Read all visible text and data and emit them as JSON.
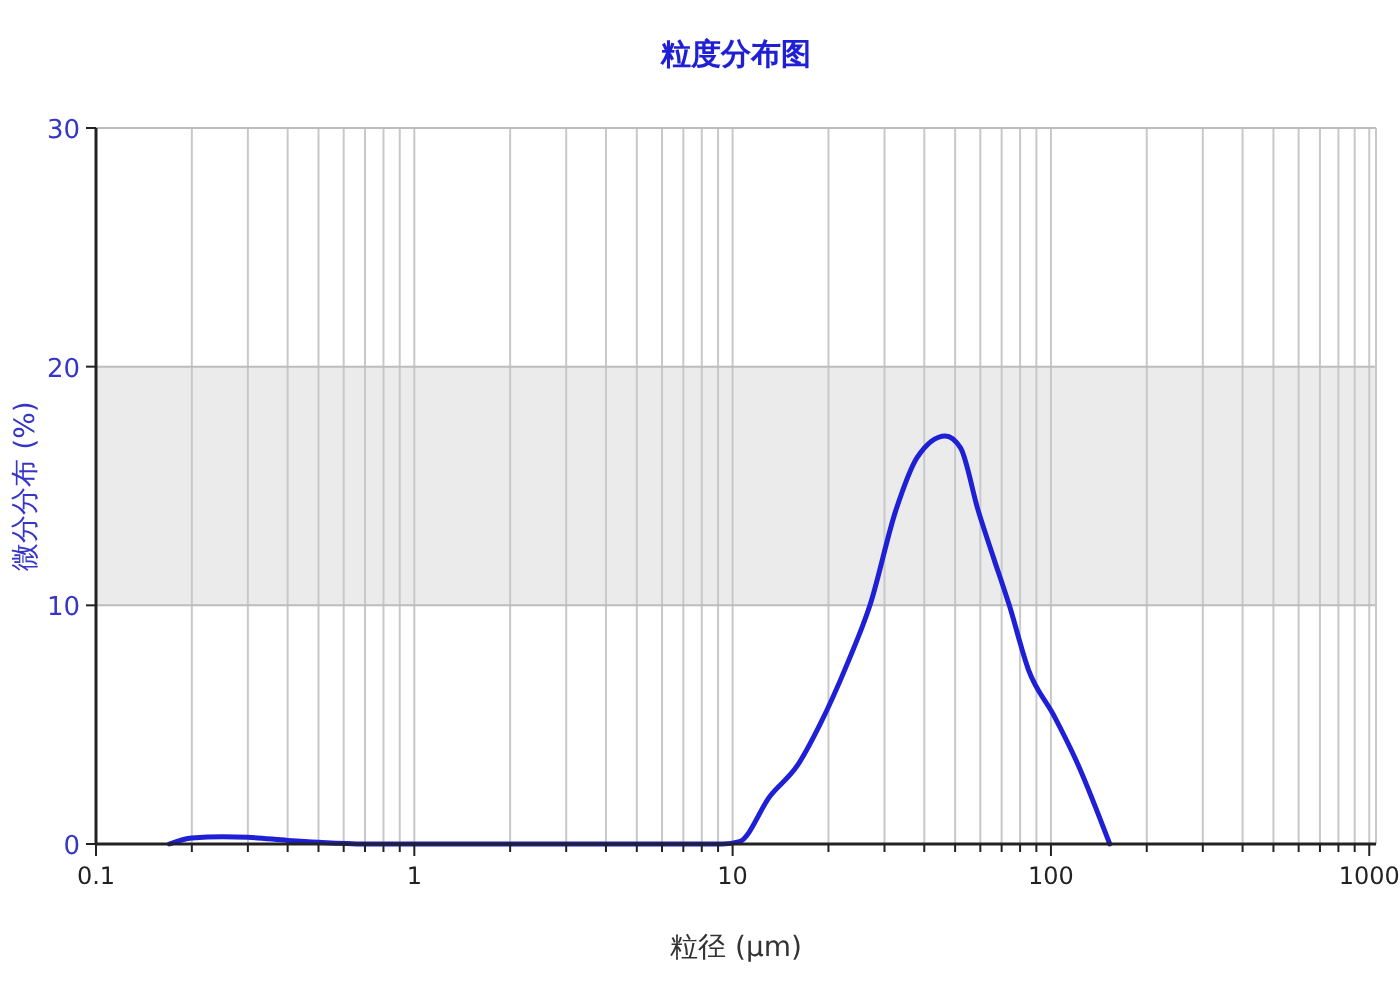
{
  "chart_data": {
    "type": "line",
    "title": "粒度分布图",
    "xlabel": "粒径 (μm)",
    "ylabel": "微分分布 (%)",
    "log": "x",
    "grid": true,
    "xlim": [
      0.1,
      1050
    ],
    "ylim": [
      0,
      30
    ],
    "xticks": [
      0.1,
      {
        "value": 0.2,
        "label": null
      },
      {
        "value": 0.3,
        "label": null
      },
      {
        "value": 0.4,
        "label": null
      },
      {
        "value": 0.5,
        "label": null
      },
      {
        "value": 0.6,
        "label": null
      },
      {
        "value": 0.7,
        "label": null
      },
      {
        "value": 0.8,
        "label": null
      },
      {
        "value": 0.9,
        "label": null
      },
      1,
      {
        "value": 2,
        "label": null
      },
      {
        "value": 3,
        "label": null
      },
      {
        "value": 4,
        "label": null
      },
      {
        "value": 5,
        "label": null
      },
      {
        "value": 6,
        "label": null
      },
      {
        "value": 7,
        "label": null
      },
      {
        "value": 8,
        "label": null
      },
      {
        "value": 9,
        "label": null
      },
      10,
      {
        "value": 20,
        "label": null
      },
      {
        "value": 30,
        "label": null
      },
      {
        "value": 40,
        "label": null
      },
      {
        "value": 50,
        "label": null
      },
      {
        "value": 60,
        "label": null
      },
      {
        "value": 70,
        "label": null
      },
      {
        "value": 80,
        "label": null
      },
      {
        "value": 90,
        "label": null
      },
      100,
      {
        "value": 200,
        "label": null
      },
      {
        "value": 300,
        "label": null
      },
      {
        "value": 400,
        "label": null
      },
      {
        "value": 500,
        "label": null
      },
      {
        "value": 600,
        "label": null
      },
      {
        "value": 700,
        "label": null
      },
      {
        "value": 800,
        "label": null
      },
      {
        "value": 900,
        "label": null
      },
      1000
    ],
    "yticks": [
      0,
      10,
      20,
      30
    ],
    "bands": [
      {
        "axis": "y",
        "from": 10,
        "to": 20,
        "color": "#ebebeb"
      }
    ],
    "series": [
      {
        "color": "#1f1fd6",
        "x": [
          0.17,
          0.2,
          0.25,
          0.3,
          0.4,
          0.5,
          0.7,
          1,
          5,
          9.3,
          10.5,
          13.1,
          16,
          18.8,
          23,
          27,
          32.6,
          38,
          46.6,
          52,
          59,
          66,
          74,
          85,
          102,
          120,
          153
        ],
        "values": [
          0,
          0.25,
          0.3,
          0.28,
          0.15,
          0.07,
          0,
          0,
          0,
          0,
          0.1,
          2,
          3.3,
          5,
          7.6,
          10,
          14,
          16.2,
          17.1,
          16.6,
          14,
          12,
          10,
          7.3,
          5.4,
          3.5,
          0
        ]
      }
    ]
  }
}
